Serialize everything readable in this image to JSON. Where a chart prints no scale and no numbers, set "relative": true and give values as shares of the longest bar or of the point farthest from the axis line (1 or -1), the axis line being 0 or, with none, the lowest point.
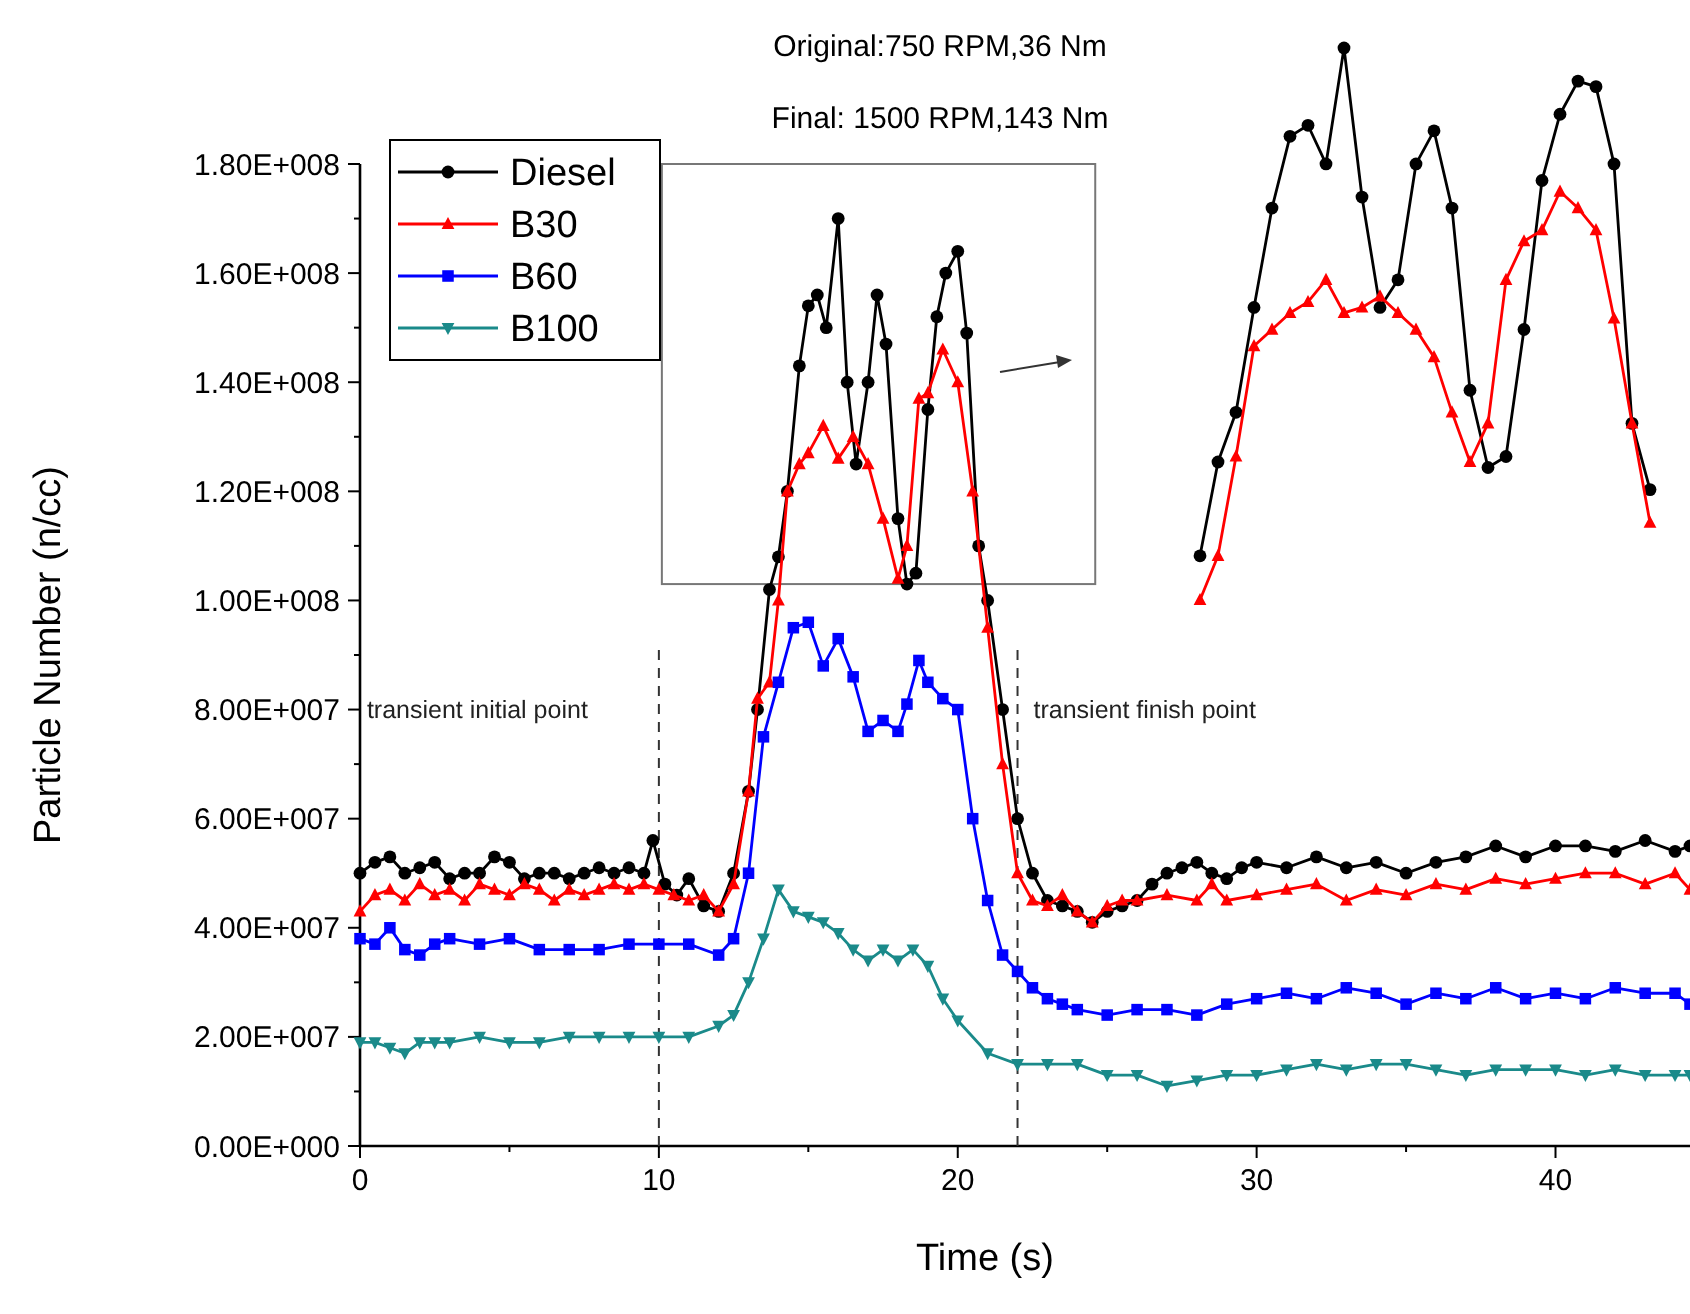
{
  "chart_data": [
    {
      "type": "line",
      "title": "Original:750 RPM,36 Nm",
      "subtitle": "Final: 1500 RPM,143 Nm",
      "xlabel": "Time (s)",
      "ylabel": "Particle Number (n/cc)",
      "xlim": [
        0,
        44.5
      ],
      "xticks": [
        0,
        10,
        20,
        30,
        40
      ],
      "ylim": [
        0,
        180000000.0
      ],
      "yticks": [
        {
          "value": 0,
          "label": "0.00E+000"
        },
        {
          "value": 20000000.0,
          "label": "2.00E+007"
        },
        {
          "value": 40000000.0,
          "label": "4.00E+007"
        },
        {
          "value": 60000000.0,
          "label": "6.00E+007"
        },
        {
          "value": 80000000.0,
          "label": "8.00E+007"
        },
        {
          "value": 100000000.0,
          "label": "1.00E+008"
        },
        {
          "value": 120000000.0,
          "label": "1.20E+008"
        },
        {
          "value": 140000000.0,
          "label": "1.40E+008"
        },
        {
          "value": 160000000.0,
          "label": "1.60E+008"
        },
        {
          "value": 180000000.0,
          "label": "1.80E+008"
        }
      ],
      "grid": false,
      "legend": "top left",
      "line_style": "solid",
      "ref_lines": [
        {
          "axis": "x",
          "value": 10,
          "label": "transient initial point",
          "line_style": "dashed",
          "color": "#333333"
        },
        {
          "axis": "x",
          "value": 22,
          "label": "transient finish point",
          "line_style": "dashed",
          "color": "#333333"
        }
      ],
      "series": [
        {
          "name": "Diesel",
          "color": "#000000",
          "marker": "circle",
          "x": [
            0,
            0.5,
            1,
            1.5,
            2,
            2.5,
            3,
            3.5,
            4,
            4.5,
            5,
            5.5,
            6,
            6.5,
            7,
            7.5,
            8,
            8.5,
            9,
            9.5,
            9.8,
            10.2,
            10.6,
            11,
            11.5,
            12,
            12.5,
            13,
            13.3,
            13.7,
            14,
            14.3,
            14.7,
            15,
            15.3,
            15.6,
            16,
            16.3,
            16.6,
            17,
            17.3,
            17.6,
            18,
            18.3,
            18.6,
            19,
            19.3,
            19.6,
            20,
            20.3,
            20.7,
            21,
            21.5,
            22,
            22.5,
            23,
            23.5,
            24,
            24.5,
            25,
            25.5,
            26,
            26.5,
            27,
            27.5,
            28,
            28.5,
            29,
            29.5,
            30,
            31,
            32,
            33,
            34,
            35,
            36,
            37,
            38,
            39,
            40,
            41,
            42,
            43,
            44,
            44.5
          ],
          "values": [
            50000000.0,
            52000000.0,
            53000000.0,
            50000000.0,
            51000000.0,
            52000000.0,
            49000000.0,
            50000000.0,
            50000000.0,
            53000000.0,
            52000000.0,
            49000000.0,
            50000000.0,
            50000000.0,
            49000000.0,
            50000000.0,
            51000000.0,
            50000000.0,
            51000000.0,
            50000000.0,
            56000000.0,
            48000000.0,
            46000000.0,
            49000000.0,
            44000000.0,
            43000000.0,
            50000000.0,
            65000000.0,
            80000000.0,
            102000000.0,
            108000000.0,
            120000000.0,
            143000000.0,
            154000000.0,
            156000000.0,
            150000000.0,
            170000000.0,
            140000000.0,
            125000000.0,
            140000000.0,
            156000000.0,
            147000000.0,
            115000000.0,
            103000000.0,
            105000000.0,
            135000000.0,
            152000000.0,
            160000000.0,
            164000000.0,
            149000000.0,
            110000000.0,
            100000000.0,
            80000000.0,
            60000000.0,
            50000000.0,
            45000000.0,
            44000000.0,
            43000000.0,
            41000000.0,
            43000000.0,
            44000000.0,
            45000000.0,
            48000000.0,
            50000000.0,
            51000000.0,
            52000000.0,
            50000000.0,
            49000000.0,
            51000000.0,
            52000000.0,
            51000000.0,
            53000000.0,
            51000000.0,
            52000000.0,
            50000000.0,
            52000000.0,
            53000000.0,
            55000000.0,
            53000000.0,
            55000000.0,
            55000000.0,
            54000000.0,
            56000000.0,
            54000000.0,
            55000000.0
          ]
        },
        {
          "name": "B30",
          "color": "#ff0000",
          "marker": "triangle",
          "x": [
            0,
            0.5,
            1,
            1.5,
            2,
            2.5,
            3,
            3.5,
            4,
            4.5,
            5,
            5.5,
            6,
            6.5,
            7,
            7.5,
            8,
            8.5,
            9,
            9.5,
            10,
            10.5,
            11,
            11.5,
            12,
            12.5,
            13,
            13.3,
            13.7,
            14,
            14.3,
            14.7,
            15,
            15.5,
            16,
            16.5,
            17,
            17.5,
            18,
            18.3,
            18.7,
            19,
            19.5,
            20,
            20.5,
            21,
            21.5,
            22,
            22.5,
            23,
            23.5,
            24,
            24.5,
            25,
            25.5,
            26,
            27,
            28,
            28.5,
            29,
            30,
            31,
            32,
            33,
            34,
            35,
            36,
            37,
            38,
            39,
            40,
            41,
            42,
            43,
            44,
            44.5
          ],
          "values": [
            43000000.0,
            46000000.0,
            47000000.0,
            45000000.0,
            48000000.0,
            46000000.0,
            47000000.0,
            45000000.0,
            48000000.0,
            47000000.0,
            46000000.0,
            48000000.0,
            47000000.0,
            45000000.0,
            47000000.0,
            46000000.0,
            47000000.0,
            48000000.0,
            47000000.0,
            48000000.0,
            47000000.0,
            46000000.0,
            45000000.0,
            46000000.0,
            43000000.0,
            48000000.0,
            65000000.0,
            82000000.0,
            85000000.0,
            100000000.0,
            120000000.0,
            125000000.0,
            127000000.0,
            132000000.0,
            126000000.0,
            130000000.0,
            125000000.0,
            115000000.0,
            104000000.0,
            110000000.0,
            137000000.0,
            138000000.0,
            146000000.0,
            140000000.0,
            120000000.0,
            95000000.0,
            70000000.0,
            50000000.0,
            45000000.0,
            44000000.0,
            46000000.0,
            43000000.0,
            41000000.0,
            44000000.0,
            45000000.0,
            45000000.0,
            46000000.0,
            45000000.0,
            48000000.0,
            45000000.0,
            46000000.0,
            47000000.0,
            48000000.0,
            45000000.0,
            47000000.0,
            46000000.0,
            48000000.0,
            47000000.0,
            49000000.0,
            48000000.0,
            49000000.0,
            50000000.0,
            50000000.0,
            48000000.0,
            50000000.0,
            47000000.0
          ]
        },
        {
          "name": "B60",
          "color": "#0000ff",
          "marker": "square",
          "x": [
            0,
            0.5,
            1,
            1.5,
            2,
            2.5,
            3,
            4,
            5,
            6,
            7,
            8,
            9,
            10,
            11,
            12,
            12.5,
            13,
            13.5,
            14,
            14.5,
            15,
            15.5,
            16,
            16.5,
            17,
            17.5,
            18,
            18.3,
            18.7,
            19,
            19.5,
            20,
            20.5,
            21,
            21.5,
            22,
            22.5,
            23,
            23.5,
            24,
            25,
            26,
            27,
            28,
            29,
            30,
            31,
            32,
            33,
            34,
            35,
            36,
            37,
            38,
            39,
            40,
            41,
            42,
            43,
            44,
            44.5
          ],
          "values": [
            38000000.0,
            37000000.0,
            40000000.0,
            36000000.0,
            35000000.0,
            37000000.0,
            38000000.0,
            37000000.0,
            38000000.0,
            36000000.0,
            36000000.0,
            36000000.0,
            37000000.0,
            37000000.0,
            37000000.0,
            35000000.0,
            38000000.0,
            50000000.0,
            75000000.0,
            85000000.0,
            95000000.0,
            96000000.0,
            88000000.0,
            93000000.0,
            86000000.0,
            76000000.0,
            78000000.0,
            76000000.0,
            81000000.0,
            89000000.0,
            85000000.0,
            82000000.0,
            80000000.0,
            60000000.0,
            45000000.0,
            35000000.0,
            32000000.0,
            29000000.0,
            27000000.0,
            26000000.0,
            25000000.0,
            24000000.0,
            25000000.0,
            25000000.0,
            24000000.0,
            26000000.0,
            27000000.0,
            28000000.0,
            27000000.0,
            29000000.0,
            28000000.0,
            26000000.0,
            28000000.0,
            27000000.0,
            29000000.0,
            27000000.0,
            28000000.0,
            27000000.0,
            29000000.0,
            28000000.0,
            28000000.0,
            26000000.0
          ]
        },
        {
          "name": "B100",
          "color": "#1a8a8a",
          "marker": "triangle-down",
          "x": [
            0,
            0.5,
            1,
            1.5,
            2,
            2.5,
            3,
            4,
            5,
            6,
            7,
            8,
            9,
            10,
            11,
            12,
            12.5,
            13,
            13.5,
            14,
            14.5,
            15,
            15.5,
            16,
            16.5,
            17,
            17.5,
            18,
            18.5,
            19,
            19.5,
            20,
            21,
            22,
            23,
            24,
            25,
            26,
            27,
            28,
            29,
            30,
            31,
            32,
            33,
            34,
            35,
            36,
            37,
            38,
            39,
            40,
            41,
            42,
            43,
            44,
            44.5
          ],
          "values": [
            19000000.0,
            19000000.0,
            18000000.0,
            17000000.0,
            19000000.0,
            19000000.0,
            19000000.0,
            20000000.0,
            19000000.0,
            19000000.0,
            20000000.0,
            20000000.0,
            20000000.0,
            20000000.0,
            20000000.0,
            22000000.0,
            24000000.0,
            30000000.0,
            38000000.0,
            47000000.0,
            43000000.0,
            42000000.0,
            41000000.0,
            39000000.0,
            36000000.0,
            34000000.0,
            36000000.0,
            34000000.0,
            36000000.0,
            33000000.0,
            27000000.0,
            23000000.0,
            17000000.0,
            15000000.0,
            15000000.0,
            15000000.0,
            13000000.0,
            13000000.0,
            11000000.0,
            12000000.0,
            13000000.0,
            13000000.0,
            14000000.0,
            15000000.0,
            14000000.0,
            15000000.0,
            15000000.0,
            14000000.0,
            13000000.0,
            14000000.0,
            14000000.0,
            14000000.0,
            13000000.0,
            14000000.0,
            13000000.0,
            13000000.0,
            13000000.0
          ]
        }
      ]
    },
    {
      "type": "line",
      "relative": true,
      "line_style": "solid",
      "categories": [
        null,
        null,
        null,
        null,
        null,
        null,
        null,
        null,
        null,
        null,
        null,
        null,
        null,
        null,
        null,
        null,
        null,
        null,
        null,
        null,
        null,
        null,
        null,
        null,
        null,
        null
      ],
      "series": [
        {
          "color": "#000000",
          "marker": "circle",
          "values": [
            0.08,
            0.25,
            0.34,
            0.53,
            0.71,
            0.84,
            0.86,
            0.79,
            1,
            0.73,
            0.53,
            0.58,
            0.79,
            0.85,
            0.71,
            0.38,
            0.24,
            0.26,
            0.49,
            0.76,
            0.88,
            0.94,
            0.93,
            0.79,
            0.32,
            0.2
          ]
        },
        {
          "color": "#ff0000",
          "marker": "triangle",
          "values": [
            0,
            0.08,
            0.26,
            0.46,
            0.49,
            0.52,
            0.54,
            0.58,
            0.52,
            0.53,
            0.55,
            0.52,
            0.49,
            0.44,
            0.34,
            0.25,
            0.32,
            0.58,
            0.65,
            0.67,
            0.74,
            0.71,
            0.67,
            0.51,
            0.32,
            0.14
          ]
        }
      ]
    }
  ]
}
